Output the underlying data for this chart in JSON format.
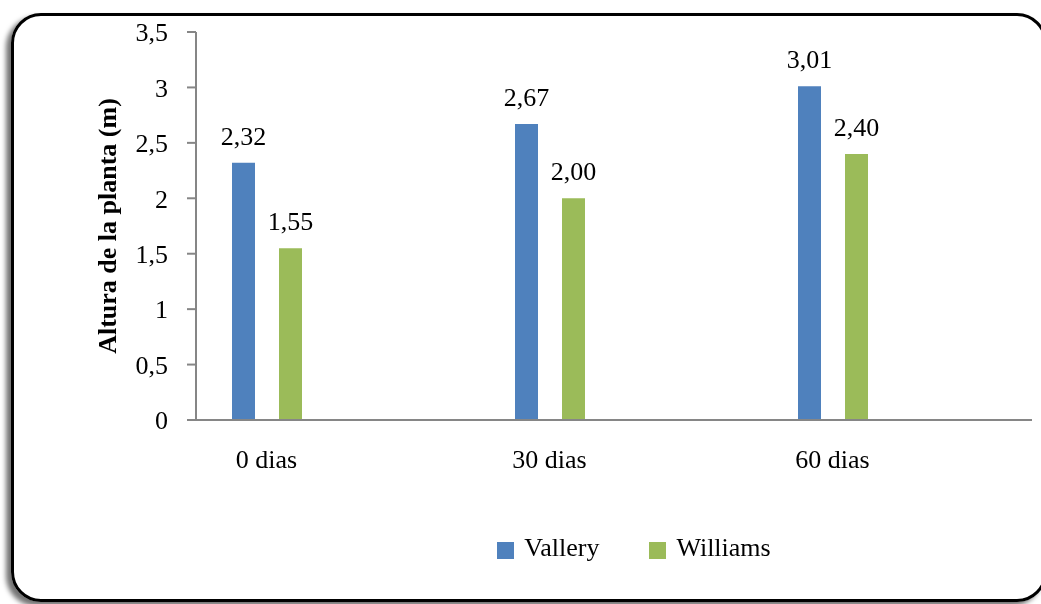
{
  "chart_data": {
    "type": "bar",
    "ylabel": "Altura de la planta (m)",
    "categories": [
      "0 dias",
      "30 dias",
      "60 dias"
    ],
    "series": [
      {
        "name": "Vallery",
        "color": "#4f81bd",
        "values": [
          2.32,
          2.67,
          3.01
        ],
        "value_labels": [
          "2,32",
          "2,67",
          "3,01"
        ]
      },
      {
        "name": "Williams",
        "color": "#9bbb59",
        "values": [
          1.55,
          2.0,
          2.4
        ],
        "value_labels": [
          "1,55",
          "2,00",
          "2,40"
        ]
      }
    ],
    "ylim": [
      0,
      3.5
    ],
    "yticks": [
      0,
      {
        "value": 0.5,
        "label": "0,5"
      },
      1,
      {
        "value": 1.5,
        "label": "1,5"
      },
      2,
      {
        "value": 2.5,
        "label": "2,5"
      },
      3,
      {
        "value": 3.5,
        "label": "3,5"
      }
    ],
    "legend": "bottom"
  }
}
